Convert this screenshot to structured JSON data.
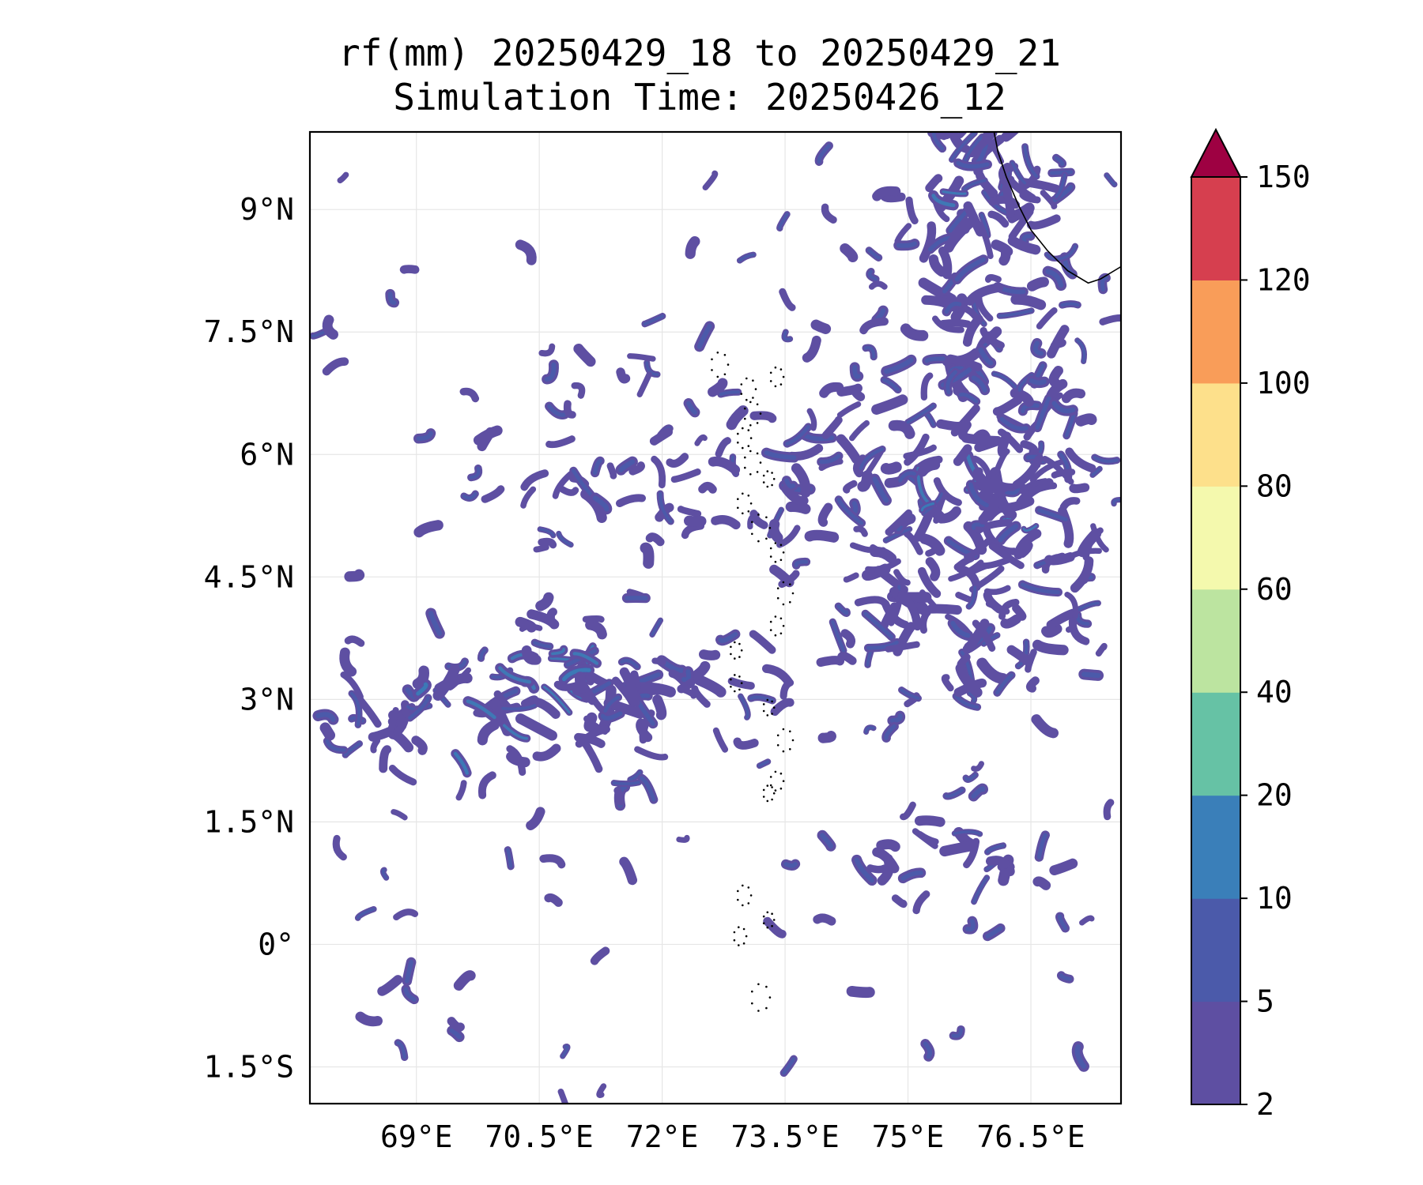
{
  "title": {
    "line1": "rf(mm) 20250429_18 to 20250429_21",
    "line2": "Simulation Time: 20250426_12"
  },
  "map": {
    "lon_range": [
      67.7,
      77.6
    ],
    "lat_range": [
      -1.95,
      9.95
    ],
    "x_ticks": [
      {
        "value": 69.0,
        "label": "69°E"
      },
      {
        "value": 70.5,
        "label": "70.5°E"
      },
      {
        "value": 72.0,
        "label": "72°E"
      },
      {
        "value": 73.5,
        "label": "73.5°E"
      },
      {
        "value": 75.0,
        "label": "75°E"
      },
      {
        "value": 76.5,
        "label": "76.5°E"
      }
    ],
    "y_ticks": [
      {
        "value": 9.0,
        "label": "9°N"
      },
      {
        "value": 7.5,
        "label": "7.5°N"
      },
      {
        "value": 6.0,
        "label": "6°N"
      },
      {
        "value": 4.5,
        "label": "4.5°N"
      },
      {
        "value": 3.0,
        "label": "3°N"
      },
      {
        "value": 1.5,
        "label": "1.5°N"
      },
      {
        "value": 0.0,
        "label": "0°"
      },
      {
        "value": -1.5,
        "label": "1.5°S"
      }
    ],
    "grid": true,
    "coastline_color": "#000000",
    "rain_bands": [
      {
        "level": "2-5",
        "color": "#5e4fa2"
      },
      {
        "level": "5-10",
        "color": "#4b5aaa"
      },
      {
        "level": "10-20",
        "color": "#3a7fb9"
      }
    ]
  },
  "colorbar": {
    "levels": [
      2,
      5,
      10,
      20,
      40,
      60,
      80,
      100,
      120,
      150
    ],
    "labels": [
      "2",
      "5",
      "10",
      "20",
      "40",
      "60",
      "80",
      "100",
      "120",
      "150"
    ],
    "colors": [
      "#5e4fa2",
      "#4b5aaa",
      "#3a7fb9",
      "#66c2a5",
      "#bce4a0",
      "#f4f9ad",
      "#fde08b",
      "#f99d59",
      "#d63f4f"
    ],
    "extend_color": "#9e0142",
    "extend": "max"
  }
}
